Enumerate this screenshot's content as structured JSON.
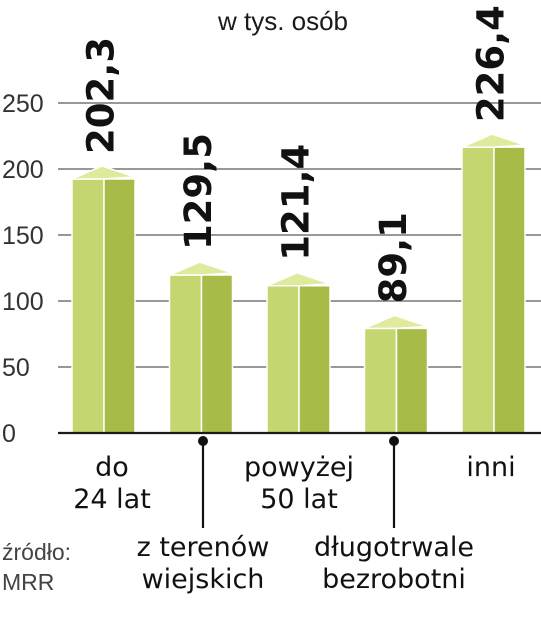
{
  "chart_data": {
    "type": "bar",
    "subtitle": "w tys. osób",
    "categories": [
      {
        "lines": [
          "do",
          "24 lat"
        ],
        "value_label": "202,3"
      },
      {
        "lines": [
          "z terenów",
          "wiejskich"
        ],
        "value_label": "129,5"
      },
      {
        "lines": [
          "powyżej",
          "50 lat"
        ],
        "value_label": "121,4"
      },
      {
        "lines": [
          "długotrwale",
          "bezrobotni"
        ],
        "value_label": "89,1"
      },
      {
        "lines": [
          "inni"
        ],
        "value_label": "226,4"
      }
    ],
    "values": [
      202.3,
      129.5,
      121.4,
      89.1,
      226.4
    ],
    "ylim": [
      0,
      250
    ],
    "yticks": [
      "0",
      "50",
      "100",
      "150",
      "200",
      "250"
    ],
    "grid": true,
    "colors": {
      "bar_front": "#c4d670",
      "bar_side": "#a7bb49",
      "bar_top": "#dfea9d",
      "bar_edge": "#ffffff"
    },
    "source": {
      "line1": "źródło:",
      "line2": "MRR"
    }
  }
}
